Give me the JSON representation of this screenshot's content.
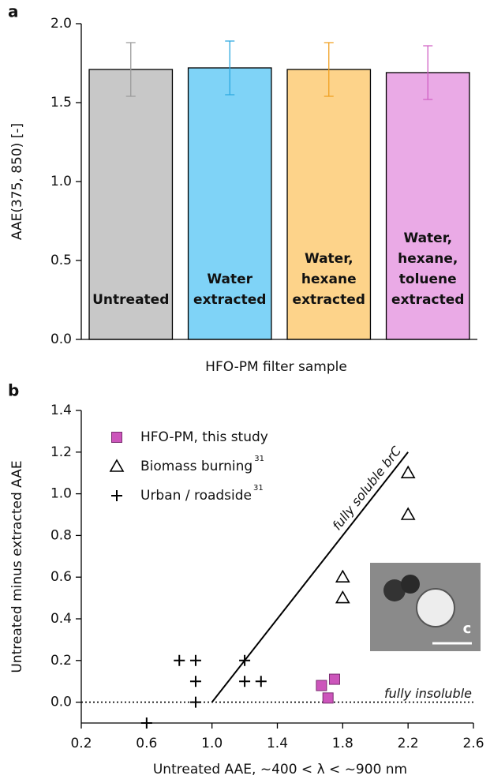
{
  "chart_data": [
    {
      "type": "bar",
      "label": "a",
      "x_label": "HFO-PM filter sample",
      "y_label": "AAE(375, 850)  [-]",
      "categories": [
        [
          "Untreated"
        ],
        [
          "Water",
          "extracted"
        ],
        [
          "Water,",
          "hexane",
          "extracted"
        ],
        [
          "Water,",
          "hexane,",
          "toluene",
          "extracted"
        ]
      ],
      "values": [
        1.71,
        1.72,
        1.71,
        1.69
      ],
      "errors": [
        0.17,
        0.17,
        0.17,
        0.17
      ],
      "colors": [
        "#c8c8c8",
        "#7fd3f7",
        "#fdd38a",
        "#eaaae6"
      ],
      "error_colors": [
        "#9a9a9a",
        "#2aa8df",
        "#f0a020",
        "#d060c4"
      ],
      "ylim": [
        0,
        2
      ],
      "yticks": [
        {
          "value": 0,
          "label": "0.0"
        },
        0.5,
        {
          "value": 1,
          "label": "1.0"
        },
        1.5,
        {
          "value": 2,
          "label": "2.0"
        }
      ]
    },
    {
      "type": "scatter",
      "label": "b",
      "x_label": "Untreated AAE,  ~400 < λ < ~900 nm",
      "y_label": "Untreated minus extracted AAE",
      "series": [
        {
          "name": "HFO-PM, this study",
          "marker": "square",
          "color": "#cc55bb",
          "x": [
            1.67,
            1.71,
            1.75
          ],
          "y": [
            0.08,
            0.02,
            0.11
          ]
        },
        {
          "name": "Biomass burning",
          "superscript": "31",
          "marker": "triangle",
          "color": "#000000",
          "x": [
            2.2,
            2.2,
            1.8,
            1.8
          ],
          "y": [
            1.1,
            0.9,
            0.6,
            0.5
          ]
        },
        {
          "name": "Urban / roadside",
          "superscript": "31",
          "marker": "plus",
          "color": "#000000",
          "x": [
            0.8,
            0.9,
            0.9,
            0.9,
            1.2,
            1.2,
            1.3,
            0.6
          ],
          "y": [
            0.2,
            0.2,
            0.1,
            0.0,
            0.2,
            0.1,
            0.1,
            -0.1
          ]
        }
      ],
      "annotations": [
        {
          "text": "fully soluble brC",
          "style": "solid",
          "x": [
            1.0,
            2.2
          ],
          "y": [
            0.0,
            1.2
          ]
        },
        {
          "text": "fully insoluble",
          "style": "dotted",
          "x": [
            0.2,
            2.6
          ],
          "y": [
            0.0,
            0.0
          ]
        }
      ],
      "inset_label": "c",
      "xlim": [
        0.2,
        2.6
      ],
      "xticks": [
        0.2,
        0.6,
        {
          "value": 1,
          "label": "1.0"
        },
        1.4,
        1.8,
        2.2,
        2.6
      ],
      "ylim": [
        -0.1,
        1.4
      ],
      "yticks": [
        {
          "value": 0,
          "label": "0.0"
        },
        0.2,
        0.4,
        0.6,
        0.8,
        {
          "value": 1,
          "label": "1.0"
        },
        1.2,
        1.4
      ]
    }
  ]
}
